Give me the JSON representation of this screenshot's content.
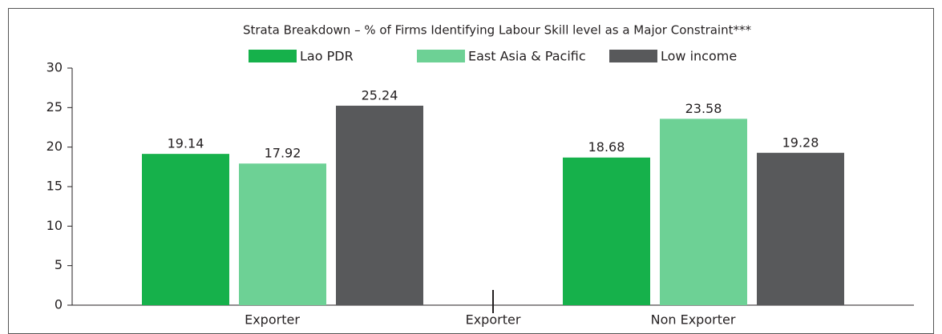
{
  "chart_data": {
    "type": "bar",
    "title": "Strata Breakdown – % of Firms Identifying Labour Skill level as a Major Constraint***",
    "categories": [
      "Exporter",
      "Non Exporter"
    ],
    "annotation": "Exporter",
    "series": [
      {
        "name": "Lao PDR",
        "color": "#16b14b",
        "values": [
          19.14,
          18.68
        ]
      },
      {
        "name": "East Asia & Pacific",
        "color": "#6dd195",
        "values": [
          17.92,
          23.58
        ]
      },
      {
        "name": "Low income",
        "color": "#58595b",
        "values": [
          25.24,
          19.28
        ]
      }
    ],
    "ylim": [
      0,
      30
    ],
    "yticks": [
      0,
      5,
      10,
      15,
      20,
      25,
      30
    ]
  }
}
